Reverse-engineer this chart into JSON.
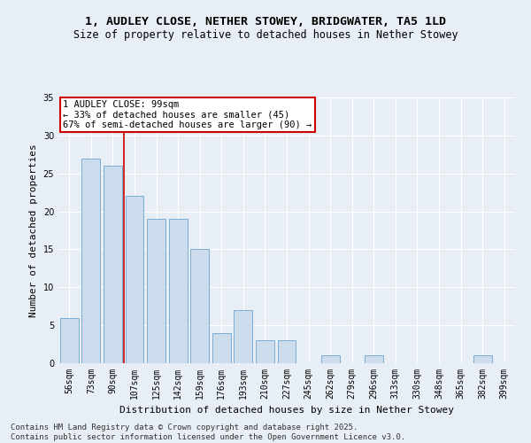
{
  "title_line1": "1, AUDLEY CLOSE, NETHER STOWEY, BRIDGWATER, TA5 1LD",
  "title_line2": "Size of property relative to detached houses in Nether Stowey",
  "xlabel": "Distribution of detached houses by size in Nether Stowey",
  "ylabel": "Number of detached properties",
  "bar_color": "#ccdcec",
  "bar_edge_color": "#7aadd4",
  "categories": [
    "56sqm",
    "73sqm",
    "90sqm",
    "107sqm",
    "125sqm",
    "142sqm",
    "159sqm",
    "176sqm",
    "193sqm",
    "210sqm",
    "227sqm",
    "245sqm",
    "262sqm",
    "279sqm",
    "296sqm",
    "313sqm",
    "330sqm",
    "348sqm",
    "365sqm",
    "382sqm",
    "399sqm"
  ],
  "values": [
    6,
    27,
    26,
    22,
    19,
    19,
    15,
    4,
    7,
    3,
    3,
    0,
    1,
    0,
    1,
    0,
    0,
    0,
    0,
    1,
    0
  ],
  "ylim": [
    0,
    35
  ],
  "yticks": [
    0,
    5,
    10,
    15,
    20,
    25,
    30,
    35
  ],
  "property_line_x": 2.5,
  "annotation_text": "1 AUDLEY CLOSE: 99sqm\n← 33% of detached houses are smaller (45)\n67% of semi-detached houses are larger (90) →",
  "footer_line1": "Contains HM Land Registry data © Crown copyright and database right 2025.",
  "footer_line2": "Contains public sector information licensed under the Open Government Licence v3.0.",
  "bg_color": "#e8eef5",
  "plot_bg_color": "#e8eef5",
  "grid_color": "#ffffff",
  "red_line_color": "#cc0000",
  "annotation_box_color": "#cc0000",
  "title_fontsize": 9.5,
  "subtitle_fontsize": 8.5,
  "axis_label_fontsize": 8,
  "tick_fontsize": 7,
  "annotation_fontsize": 7.5,
  "footer_fontsize": 6.5,
  "ylabel_fontsize": 8
}
